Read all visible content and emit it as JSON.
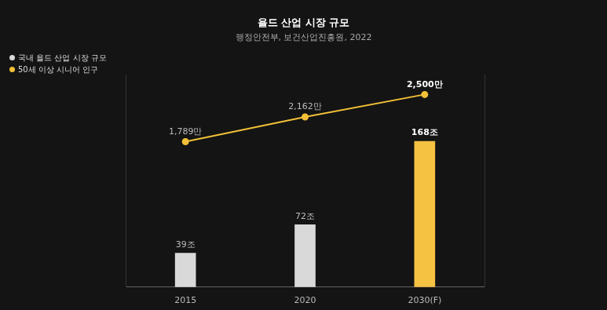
{
  "chart_data": {
    "type": "bar",
    "title": "욜드 산업 시장 규모",
    "subtitle": "행정안전부, 보건산업진흥원, 2022",
    "categories": [
      "2015",
      "2020",
      "2030(F)"
    ],
    "series": [
      {
        "name": "국내 욜드 산업 시장 규모",
        "type": "bar",
        "color": "#d9d9d9",
        "colors": [
          "#d9d9d9",
          "#d9d9d9",
          "#f5c242"
        ],
        "values": [
          39,
          72,
          168
        ],
        "value_labels": [
          "39조",
          "72조",
          "168조"
        ]
      },
      {
        "name": "50세 이상 시니어 인구",
        "type": "line",
        "axis": "y2",
        "color": "#f2c037",
        "marker": "circle",
        "values": [
          1789,
          2162,
          2500
        ],
        "value_labels": [
          "1,789만",
          "2,162만",
          "2,500만"
        ]
      }
    ],
    "ylim": [
      0,
      245
    ],
    "y2lim": [
      -400,
      2800
    ],
    "grid": false,
    "legend": "top-left",
    "data_labels": true,
    "tick_labels": "x"
  }
}
